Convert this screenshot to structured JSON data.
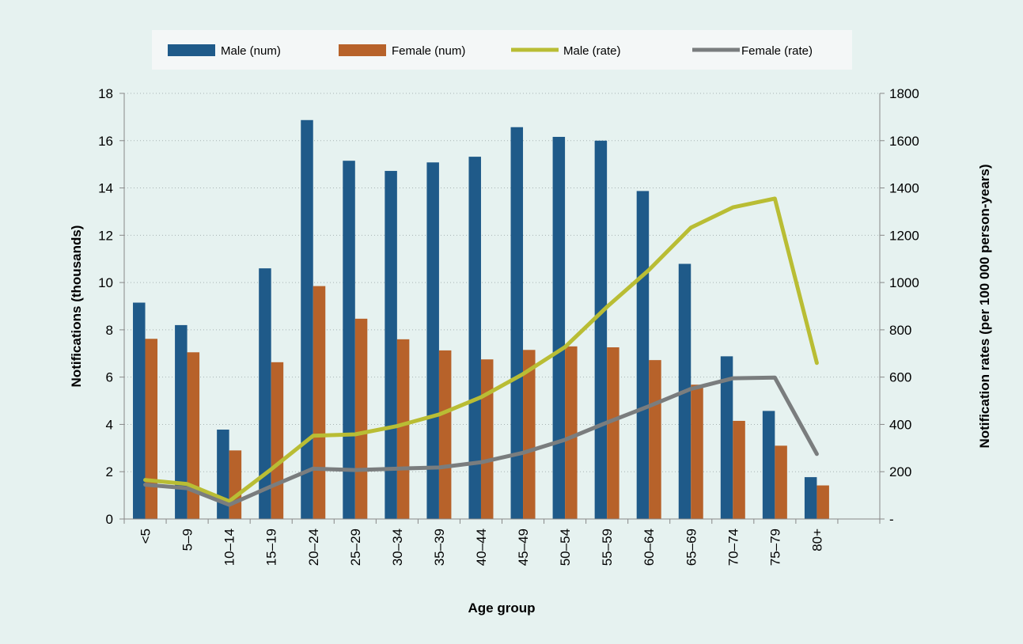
{
  "chart_data": {
    "type": "bar",
    "categories": [
      "<5",
      "5–9",
      "10–14",
      "15–19",
      "20–24",
      "25–29",
      "30–34",
      "35–39",
      "40–44",
      "45–49",
      "50–54",
      "55–59",
      "60–64",
      "65–69",
      "70–74",
      "75–79",
      "80+"
    ],
    "series": [
      {
        "name": "Male (num)",
        "kind": "bar",
        "axis": "left",
        "color": "#1f5a89",
        "values": [
          9.15,
          8.2,
          3.78,
          10.6,
          16.87,
          15.15,
          14.72,
          15.08,
          15.32,
          16.57,
          16.16,
          16.0,
          13.87,
          10.79,
          6.88,
          4.57,
          1.77
        ]
      },
      {
        "name": "Female (num)",
        "kind": "bar",
        "axis": "left",
        "color": "#b7622a",
        "values": [
          7.62,
          7.05,
          2.9,
          6.63,
          9.85,
          8.47,
          7.6,
          7.13,
          6.75,
          7.15,
          7.3,
          7.26,
          6.72,
          5.68,
          4.15,
          3.1,
          1.42
        ]
      },
      {
        "name": "Male (rate)",
        "kind": "line",
        "axis": "right",
        "color": "#b9bd34",
        "values": [
          165,
          148,
          75,
          210,
          352,
          358,
          393,
          442,
          515,
          613,
          727,
          897,
          1053,
          1232,
          1318,
          1355,
          660
        ]
      },
      {
        "name": "Female (rate)",
        "kind": "line",
        "axis": "right",
        "color": "#7a7d7e",
        "values": [
          145,
          130,
          60,
          138,
          213,
          207,
          213,
          218,
          240,
          280,
          335,
          408,
          477,
          550,
          595,
          598,
          275
        ]
      }
    ],
    "xlabel": "Age group",
    "ylabel": "Notifications (thousands)",
    "y2label": "Notification rates (per 100 000 person-years)",
    "ylim": [
      0,
      18
    ],
    "y2lim": [
      0,
      1800
    ],
    "yticks": [
      "0",
      "2",
      "4",
      "6",
      "8",
      "10",
      "12",
      "14",
      "16",
      "18"
    ],
    "y2ticks": [
      "-",
      "200",
      "400",
      "600",
      "800",
      "1000",
      "1200",
      "1400",
      "1600",
      "1800"
    ],
    "grid": true,
    "legend_position": "top"
  }
}
